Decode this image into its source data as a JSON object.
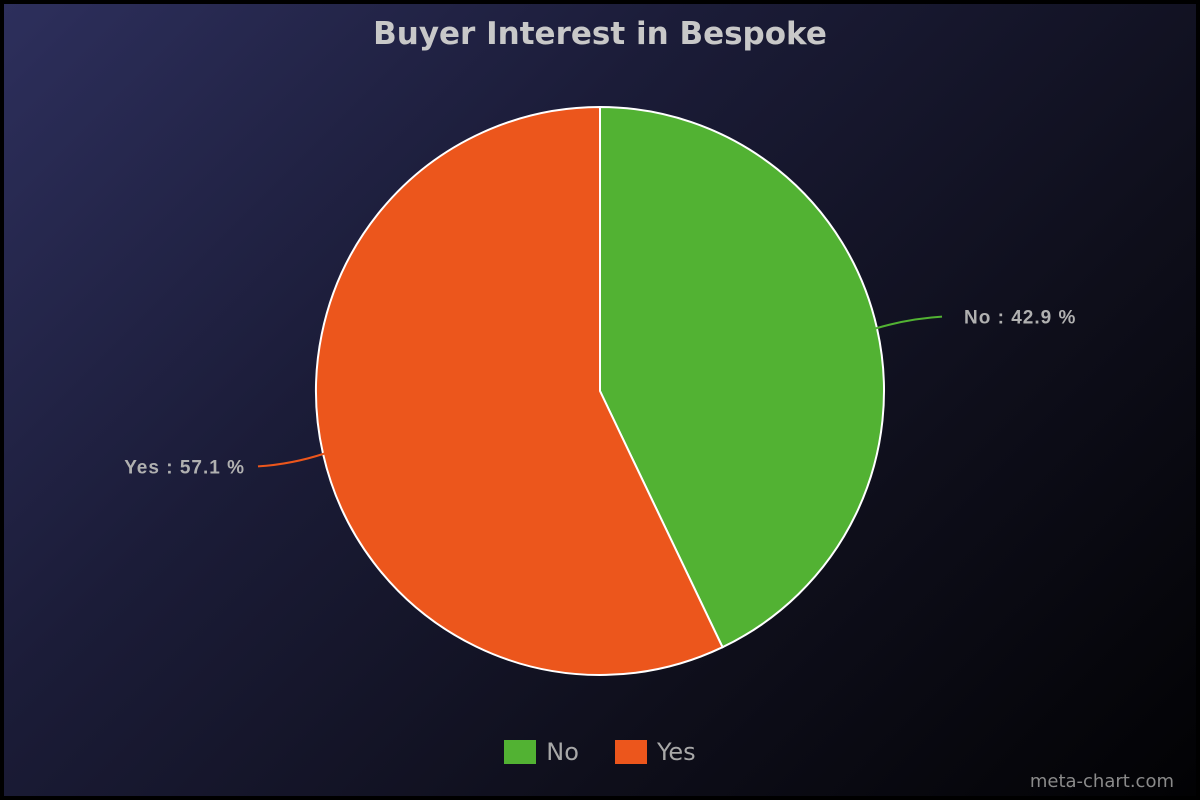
{
  "chart_data": {
    "type": "pie",
    "title": "Buyer Interest in Bespoke",
    "slices": [
      {
        "label": "No",
        "value": 42.9,
        "display": "No : 42.9 %",
        "color": "#52b233"
      },
      {
        "label": "Yes",
        "value": 57.1,
        "display": "Yes : 57.1 %",
        "color": "#ec561c"
      }
    ],
    "start_angle": "12 o'clock, clockwise",
    "legend_placement": "bottom"
  },
  "credit": "meta-chart.com"
}
